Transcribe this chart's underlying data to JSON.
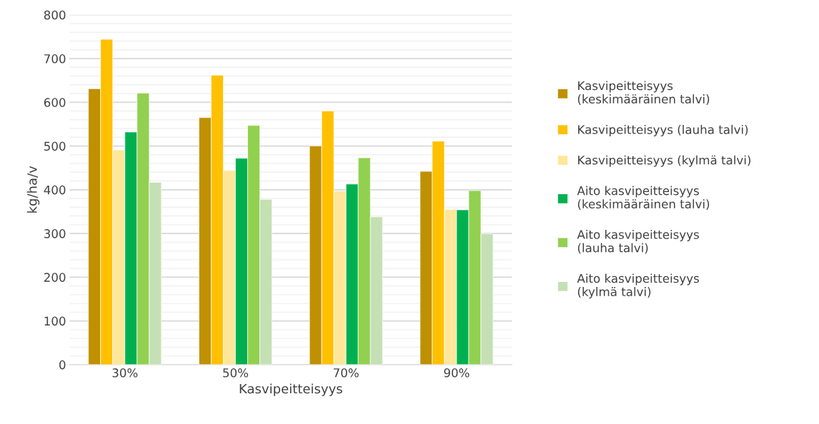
{
  "chart_data": {
    "type": "bar",
    "xlabel": "Kasvipeitteisyys",
    "ylabel": "kg/ha/v",
    "categories": [
      "30%",
      "50%",
      "70%",
      "90%"
    ],
    "series": [
      {
        "name": "Kasvipeitteisyys (keskimääräinen talvi)",
        "color": "#bf9000",
        "values": [
          631,
          565,
          500,
          442
        ]
      },
      {
        "name": "Kasvipeitteisyys (lauha talvi)",
        "color": "#ffc000",
        "values": [
          744,
          662,
          580,
          511
        ]
      },
      {
        "name": "Kasvipeitteisyys (kylmä talvi)",
        "color": "#ffe699",
        "values": [
          491,
          444,
          397,
          355
        ]
      },
      {
        "name": "Aito kasvipeitteisyys (keskimääräinen talvi)",
        "color": "#00b050",
        "values": [
          532,
          472,
          413,
          354
        ]
      },
      {
        "name": "Aito kasvipeitteisyys (lauha talvi)",
        "color": "#92d050",
        "values": [
          621,
          547,
          473,
          398
        ]
      },
      {
        "name": "Aito kasvipeitteisyys (kylmä talvi)",
        "color": "#c5e0b4",
        "values": [
          417,
          378,
          338,
          299
        ]
      }
    ],
    "ylim": [
      0,
      800
    ],
    "yticks": [
      0,
      100,
      200,
      300,
      400,
      500,
      600,
      700,
      800
    ],
    "grid": "y",
    "legend": "right"
  }
}
